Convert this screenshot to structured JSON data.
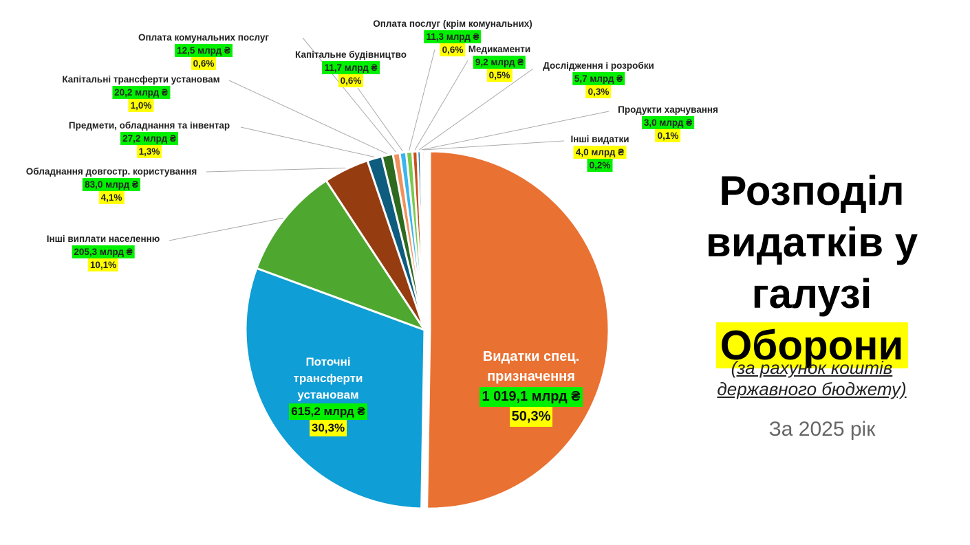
{
  "title": {
    "line1": "Розподіл",
    "line2": "видатків у",
    "line3": "галузі",
    "highlight": "Оборони"
  },
  "subtitle": {
    "line1": "(за рахунок коштів",
    "line2": "державного бюджету)"
  },
  "period": "За 2025 рік",
  "chart_data": {
    "type": "pie",
    "unit": "млрд ₴",
    "slices": [
      {
        "label": "Видатки спец. призначення",
        "amount": "1 019,1 млрд ₴",
        "value": 1019.1,
        "percent": "50,3%",
        "color": "#E97132"
      },
      {
        "label": "Поточні трансферти установам",
        "amount": "615,2 млрд ₴",
        "value": 615.2,
        "percent": "30,3%",
        "color": "#0F9ED5"
      },
      {
        "label": "Інші виплати населенню",
        "amount": "205,3 млрд ₴",
        "value": 205.3,
        "percent": "10,1%",
        "color": "#4EA72E"
      },
      {
        "label": "Обладнання довгостр. користування",
        "amount": "83,0 млрд ₴",
        "value": 83.0,
        "percent": "4,1%",
        "color": "#963C11"
      },
      {
        "label": "Предмети, обладнання та інвентар",
        "amount": "27,2 млрд ₴",
        "value": 27.2,
        "percent": "1,3%",
        "color": "#0E5C7E"
      },
      {
        "label": "Капітальні трансферти установам",
        "amount": "20,2 млрд ₴",
        "value": 20.2,
        "percent": "1,0%",
        "color": "#2E6B1E"
      },
      {
        "label": "Оплата комунальних послуг",
        "amount": "12,5 млрд ₴",
        "value": 12.5,
        "percent": "0,6%",
        "color": "#F0915D"
      },
      {
        "label": "Капітальне будівництво",
        "amount": "11,7 млрд ₴",
        "value": 11.7,
        "percent": "0,6%",
        "color": "#3BB5EC"
      },
      {
        "label": "Оплата послуг (крім комунальних)",
        "amount": "11,3 млрд ₴",
        "value": 11.3,
        "percent": "0,6%",
        "color": "#79C94F"
      },
      {
        "label": "Медикаменти",
        "amount": "9,2 млрд ₴",
        "value": 9.2,
        "percent": "0,5%",
        "color": "#C8501B"
      },
      {
        "label": "Дослідження і розробки",
        "amount": "5,7 млрд ₴",
        "value": 5.7,
        "percent": "0,3%",
        "color": "#1672A9"
      },
      {
        "label": "Продукти харчування",
        "amount": "3,0 млрд ₴",
        "value": 3.0,
        "percent": "0,1%",
        "color": "#F6C6AD"
      },
      {
        "label": "Інші видатки",
        "amount": "4,0 млрд ₴",
        "value": 4.0,
        "percent": "0,2%",
        "color": "#F2B38F"
      }
    ]
  }
}
